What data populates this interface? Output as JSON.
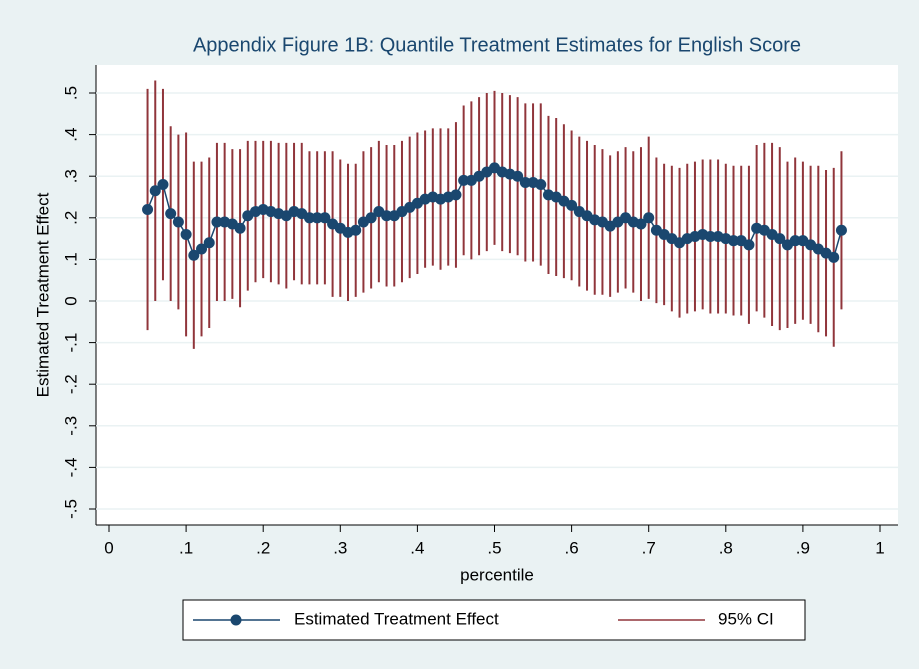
{
  "chart_data": {
    "type": "errorbar-line",
    "title": "Appendix Figure 1B: Quantile Treatment Estimates for English Score",
    "x_label": "percentile",
    "y_label": "Estimated Treatment Effect",
    "x": [
      0.05,
      0.06,
      0.07,
      0.08,
      0.09,
      0.1,
      0.11,
      0.12,
      0.13,
      0.14,
      0.15,
      0.16,
      0.17,
      0.18,
      0.19,
      0.2,
      0.21,
      0.22,
      0.23,
      0.24,
      0.25,
      0.26,
      0.27,
      0.28,
      0.29,
      0.3,
      0.31,
      0.32,
      0.33,
      0.34,
      0.35,
      0.36,
      0.37,
      0.38,
      0.39,
      0.4,
      0.41,
      0.42,
      0.43,
      0.44,
      0.45,
      0.46,
      0.47,
      0.48,
      0.49,
      0.5,
      0.51,
      0.52,
      0.53,
      0.54,
      0.55,
      0.56,
      0.57,
      0.58,
      0.59,
      0.6,
      0.61,
      0.62,
      0.63,
      0.64,
      0.65,
      0.66,
      0.67,
      0.68,
      0.69,
      0.7,
      0.71,
      0.72,
      0.73,
      0.74,
      0.75,
      0.76,
      0.77,
      0.78,
      0.79,
      0.8,
      0.81,
      0.82,
      0.83,
      0.84,
      0.85,
      0.86,
      0.87,
      0.88,
      0.89,
      0.9,
      0.91,
      0.92,
      0.93,
      0.94,
      0.95
    ],
    "series": [
      {
        "name": "Estimated Treatment Effect",
        "color": "#1a476f",
        "values": [
          0.22,
          0.265,
          0.28,
          0.21,
          0.19,
          0.16,
          0.11,
          0.125,
          0.14,
          0.19,
          0.19,
          0.185,
          0.175,
          0.205,
          0.215,
          0.22,
          0.215,
          0.21,
          0.205,
          0.215,
          0.21,
          0.2,
          0.2,
          0.2,
          0.185,
          0.175,
          0.165,
          0.17,
          0.19,
          0.2,
          0.215,
          0.205,
          0.205,
          0.215,
          0.225,
          0.235,
          0.245,
          0.25,
          0.245,
          0.25,
          0.255,
          0.29,
          0.29,
          0.3,
          0.31,
          0.32,
          0.31,
          0.305,
          0.3,
          0.285,
          0.285,
          0.28,
          0.255,
          0.25,
          0.24,
          0.23,
          0.215,
          0.205,
          0.195,
          0.19,
          0.18,
          0.19,
          0.2,
          0.19,
          0.185,
          0.2,
          0.17,
          0.16,
          0.15,
          0.14,
          0.15,
          0.155,
          0.16,
          0.155,
          0.155,
          0.15,
          0.145,
          0.145,
          0.135,
          0.175,
          0.17,
          0.16,
          0.15,
          0.135,
          0.145,
          0.145,
          0.135,
          0.125,
          0.115,
          0.105,
          0.17
        ]
      },
      {
        "name": "95% CI",
        "color": "#90353b",
        "errors": [
          0.29,
          0.265,
          0.23,
          0.21,
          0.21,
          0.245,
          0.225,
          0.21,
          0.205,
          0.19,
          0.19,
          0.18,
          0.19,
          0.18,
          0.17,
          0.165,
          0.17,
          0.17,
          0.175,
          0.165,
          0.17,
          0.16,
          0.16,
          0.16,
          0.175,
          0.165,
          0.165,
          0.16,
          0.17,
          0.17,
          0.17,
          0.17,
          0.17,
          0.17,
          0.17,
          0.17,
          0.165,
          0.165,
          0.17,
          0.165,
          0.175,
          0.18,
          0.19,
          0.19,
          0.19,
          0.185,
          0.19,
          0.19,
          0.19,
          0.19,
          0.19,
          0.195,
          0.19,
          0.19,
          0.185,
          0.18,
          0.18,
          0.18,
          0.18,
          0.175,
          0.17,
          0.17,
          0.17,
          0.17,
          0.185,
          0.195,
          0.175,
          0.17,
          0.175,
          0.18,
          0.18,
          0.18,
          0.18,
          0.185,
          0.185,
          0.18,
          0.18,
          0.18,
          0.19,
          0.2,
          0.21,
          0.22,
          0.22,
          0.2,
          0.2,
          0.19,
          0.19,
          0.2,
          0.2,
          0.215,
          0.19
        ]
      }
    ],
    "xlim": [
      0,
      1
    ],
    "xticks": [
      0,
      {
        "value": 0.1,
        "label": ".1"
      },
      {
        "value": 0.2,
        "label": ".2"
      },
      {
        "value": 0.3,
        "label": ".3"
      },
      {
        "value": 0.4,
        "label": ".4"
      },
      {
        "value": 0.5,
        "label": ".5"
      },
      {
        "value": 0.6,
        "label": ".6"
      },
      {
        "value": 0.7,
        "label": ".7"
      },
      {
        "value": 0.8,
        "label": ".8"
      },
      {
        "value": 0.9,
        "label": ".9"
      },
      1
    ],
    "ylim": [
      -0.5,
      0.5
    ],
    "yticks": [
      {
        "value": -0.5,
        "label": "-.5"
      },
      {
        "value": -0.4,
        "label": "-.4"
      },
      {
        "value": -0.3,
        "label": "-.3"
      },
      {
        "value": -0.2,
        "label": "-.2"
      },
      {
        "value": -0.1,
        "label": "-.1"
      },
      0,
      {
        "value": 0.1,
        "label": ".1"
      },
      {
        "value": 0.2,
        "label": ".2"
      },
      {
        "value": 0.3,
        "label": ".3"
      },
      {
        "value": 0.4,
        "label": ".4"
      },
      {
        "value": 0.5,
        "label": ".5"
      }
    ],
    "grid": true,
    "legend": "bottom"
  }
}
